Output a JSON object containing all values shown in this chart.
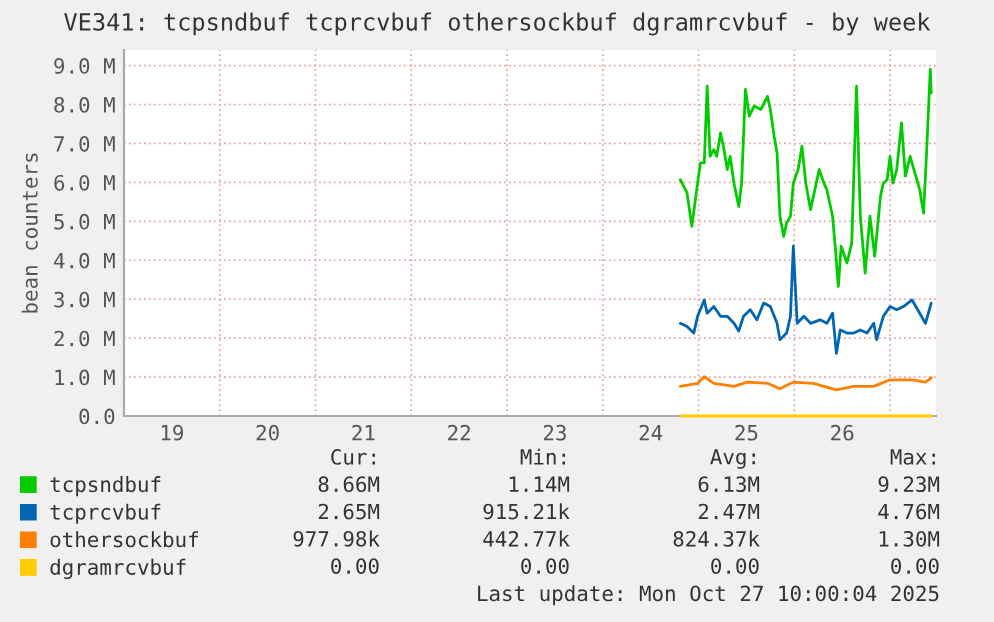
{
  "chart_data": {
    "type": "line",
    "title": "VE341: tcpsndbuf tcprcvbuf othersockbuf dgramrcvbuf - by week",
    "ylabel": "bean counters",
    "xlim": [
      19,
      27.48
    ],
    "ylim": [
      0,
      9.4
    ],
    "xticks": [
      {
        "value": 19,
        "label": null
      },
      {
        "value": 19.5,
        "label": "19"
      },
      {
        "value": 20,
        "label": null
      },
      {
        "value": 20.5,
        "label": "20"
      },
      {
        "value": 21,
        "label": null
      },
      {
        "value": 21.5,
        "label": "21"
      },
      {
        "value": 22,
        "label": null
      },
      {
        "value": 22.5,
        "label": "22"
      },
      {
        "value": 23,
        "label": null
      },
      {
        "value": 23.5,
        "label": "23"
      },
      {
        "value": 24,
        "label": null
      },
      {
        "value": 24.5,
        "label": "24"
      },
      {
        "value": 25,
        "label": null
      },
      {
        "value": 25.5,
        "label": "25"
      },
      {
        "value": 26,
        "label": null
      },
      {
        "value": 26.5,
        "label": "26"
      },
      {
        "value": 27,
        "label": null
      }
    ],
    "yticks": [
      {
        "value": 0,
        "label": "0.0"
      },
      {
        "value": 1,
        "label": "1.0 M"
      },
      {
        "value": 2,
        "label": "2.0 M"
      },
      {
        "value": 3,
        "label": "3.0 M"
      },
      {
        "value": 4,
        "label": "4.0 M"
      },
      {
        "value": 5,
        "label": "5.0 M"
      },
      {
        "value": 6,
        "label": "6.0 M"
      },
      {
        "value": 7,
        "label": "7.0 M"
      },
      {
        "value": 8,
        "label": "8.0 M"
      },
      {
        "value": 9,
        "label": "9.0 M"
      }
    ],
    "grid": true,
    "legend": "bottom",
    "line_style": "solid",
    "marker": "none",
    "series": [
      {
        "name": "tcpsndbuf",
        "color": "#00cc00",
        "x": [
          24.81,
          24.88,
          24.93,
          24.99,
          25.02,
          25.06,
          25.09,
          25.12,
          25.16,
          25.19,
          25.23,
          25.26,
          25.3,
          25.33,
          25.37,
          25.42,
          25.45,
          25.49,
          25.53,
          25.58,
          25.65,
          25.72,
          25.75,
          25.79,
          25.82,
          25.85,
          25.89,
          25.92,
          25.96,
          25.99,
          26.04,
          26.08,
          26.12,
          26.17,
          26.2,
          26.26,
          26.31,
          26.34,
          26.4,
          26.43,
          26.46,
          26.49,
          26.55,
          26.6,
          26.65,
          26.69,
          26.74,
          26.79,
          26.84,
          26.9,
          26.93,
          26.97,
          27.0,
          27.03,
          27.07,
          27.12,
          27.16,
          27.21,
          27.24,
          27.28,
          27.31,
          27.35,
          27.38,
          27.42,
          27.43
        ],
        "values": [
          6.07,
          5.73,
          4.87,
          5.98,
          6.5,
          6.5,
          8.47,
          6.67,
          6.84,
          6.67,
          7.27,
          6.93,
          6.33,
          6.67,
          5.98,
          5.38,
          5.98,
          8.39,
          7.7,
          7.96,
          7.87,
          8.21,
          7.87,
          7.18,
          6.76,
          5.13,
          4.61,
          4.96,
          5.13,
          5.98,
          6.33,
          6.93,
          5.98,
          5.3,
          5.64,
          6.33,
          5.98,
          5.81,
          5.13,
          4.27,
          3.33,
          4.36,
          3.93,
          4.44,
          8.47,
          5.13,
          3.67,
          5.13,
          4.1,
          5.64,
          5.98,
          6.07,
          6.67,
          5.98,
          6.33,
          7.53,
          6.16,
          6.67,
          6.41,
          6.07,
          5.81,
          5.21,
          6.67,
          8.9,
          8.3
        ]
      },
      {
        "name": "tcprcvbuf",
        "color": "#0066b3",
        "x": [
          24.81,
          24.88,
          24.95,
          24.99,
          25.06,
          25.09,
          25.16,
          25.23,
          25.3,
          25.37,
          25.42,
          25.47,
          25.54,
          25.61,
          25.68,
          25.75,
          25.82,
          25.85,
          25.92,
          25.96,
          25.99,
          26.03,
          26.1,
          26.17,
          26.27,
          26.34,
          26.4,
          26.44,
          26.48,
          26.55,
          26.62,
          26.69,
          26.76,
          26.83,
          26.86,
          26.93,
          27.0,
          27.07,
          27.14,
          27.23,
          27.31,
          27.37,
          27.43
        ],
        "values": [
          2.38,
          2.3,
          2.13,
          2.56,
          2.98,
          2.64,
          2.81,
          2.56,
          2.56,
          2.38,
          2.18,
          2.56,
          2.73,
          2.47,
          2.9,
          2.81,
          2.38,
          1.96,
          2.13,
          2.56,
          4.36,
          2.38,
          2.56,
          2.38,
          2.47,
          2.38,
          2.64,
          1.61,
          2.21,
          2.13,
          2.13,
          2.21,
          2.13,
          2.38,
          1.96,
          2.56,
          2.81,
          2.73,
          2.81,
          2.98,
          2.64,
          2.38,
          2.9
        ]
      },
      {
        "name": "othersockbuf",
        "color": "#ff8000",
        "x": [
          24.81,
          24.99,
          25.06,
          25.16,
          25.37,
          25.51,
          25.72,
          25.85,
          25.99,
          26.2,
          26.44,
          26.62,
          26.83,
          27.0,
          27.24,
          27.37,
          27.43
        ],
        "values": [
          0.76,
          0.84,
          1.01,
          0.84,
          0.76,
          0.87,
          0.84,
          0.7,
          0.87,
          0.84,
          0.67,
          0.76,
          0.76,
          0.93,
          0.93,
          0.87,
          0.98
        ]
      },
      {
        "name": "dgramrcvbuf",
        "color": "#ffcc00",
        "x": [
          24.81,
          27.43
        ],
        "values": [
          0,
          0
        ]
      }
    ],
    "annotations": [
      "Cur:",
      "Min:",
      "Avg:",
      "Max:",
      "8.66M",
      "1.14M",
      "6.13M",
      "9.23M",
      "2.65M",
      "915.21k",
      "2.47M",
      "4.76M",
      "977.98k",
      "442.77k",
      "824.37k",
      "1.30M",
      "0.00",
      "0.00",
      "0.00",
      "0.00",
      "Last update: Mon Oct 27 10:00:04 2025"
    ]
  }
}
